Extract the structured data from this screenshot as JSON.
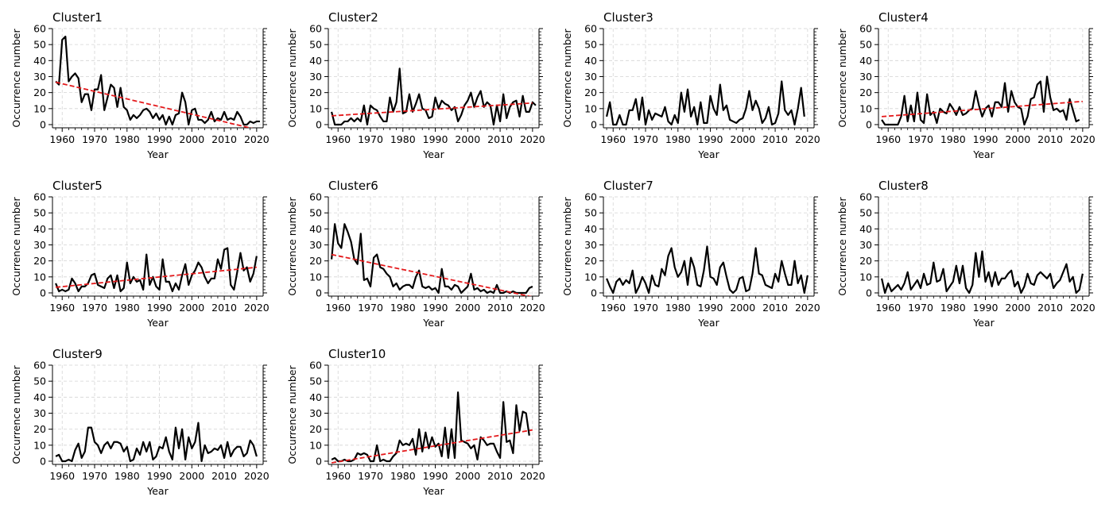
{
  "chart_data": [
    {
      "type": "line",
      "title": "Cluster1",
      "xlabel": "Year",
      "ylabel": "Occurrence number",
      "xlim": [
        1957,
        2022
      ],
      "ylim": [
        -2,
        60
      ],
      "xticks": [
        1960,
        1970,
        1980,
        1990,
        2000,
        2010,
        2020
      ],
      "yticks": [
        0,
        10,
        20,
        30,
        40,
        50,
        60
      ],
      "grid": true,
      "series": [
        {
          "x_start": 1958,
          "values": [
            27,
            25,
            53,
            55,
            27,
            30,
            32,
            29,
            14,
            19,
            19,
            9,
            22,
            22,
            31,
            9,
            17,
            25,
            23,
            11,
            23,
            11,
            9,
            3,
            6,
            4,
            6,
            9,
            10,
            8,
            4,
            7,
            3,
            6,
            0,
            5,
            0,
            6,
            7,
            20,
            14,
            0,
            9,
            10,
            3,
            3,
            1,
            3,
            8,
            2,
            4,
            3,
            8,
            3,
            4,
            3,
            8,
            5,
            0,
            0,
            2,
            1,
            2,
            2
          ],
          "color": "#000000"
        }
      ],
      "trend": {
        "x": [
          1958,
          2020
        ],
        "y": [
          26.5,
          -3.0
        ],
        "color": "#e41a1c",
        "style": "dashed"
      }
    },
    {
      "type": "line",
      "title": "Cluster2",
      "xlabel": "Year",
      "ylabel": "Occurrence number",
      "xlim": [
        1957,
        2022
      ],
      "ylim": [
        -2,
        60
      ],
      "xticks": [
        1960,
        1970,
        1980,
        1990,
        2000,
        2010,
        2020
      ],
      "yticks": [
        0,
        10,
        20,
        30,
        40,
        50,
        60
      ],
      "grid": true,
      "series": [
        {
          "x_start": 1958,
          "values": [
            8,
            0,
            0,
            0,
            2,
            2,
            4,
            2,
            4,
            2,
            12,
            0,
            12,
            10,
            9,
            5,
            2,
            2,
            17,
            8,
            14,
            35,
            7,
            8,
            19,
            8,
            13,
            19,
            10,
            9,
            4,
            5,
            17,
            10,
            15,
            13,
            12,
            9,
            11,
            2,
            6,
            12,
            15,
            20,
            11,
            17,
            21,
            11,
            14,
            12,
            0,
            12,
            2,
            19,
            4,
            11,
            14,
            15,
            5,
            18,
            8,
            8,
            14,
            12
          ],
          "color": "#000000"
        }
      ],
      "trend": {
        "x": [
          1958,
          2020
        ],
        "y": [
          5.5,
          13.5
        ],
        "color": "#e41a1c",
        "style": "dashed"
      }
    },
    {
      "type": "line",
      "title": "Cluster3",
      "xlabel": "Year",
      "ylabel": "Occurrence number",
      "xlim": [
        1957,
        2022
      ],
      "ylim": [
        -2,
        60
      ],
      "xticks": [
        1960,
        1970,
        1980,
        1990,
        2000,
        2010,
        2020
      ],
      "yticks": [
        0,
        10,
        20,
        30,
        40,
        50,
        60
      ],
      "grid": true,
      "series": [
        {
          "x_start": 1958,
          "values": [
            5,
            14,
            0,
            0,
            6,
            0,
            0,
            9,
            9,
            16,
            3,
            17,
            0,
            9,
            3,
            7,
            6,
            5,
            11,
            2,
            0,
            6,
            1,
            20,
            8,
            22,
            5,
            11,
            0,
            14,
            1,
            1,
            18,
            10,
            6,
            25,
            9,
            12,
            3,
            2,
            1,
            3,
            4,
            10,
            21,
            9,
            15,
            10,
            1,
            4,
            11,
            0,
            1,
            7,
            27,
            9,
            6,
            9,
            0,
            10,
            23,
            5
          ],
          "color": "#000000"
        }
      ]
    },
    {
      "type": "line",
      "title": "Cluster4",
      "xlabel": "Year",
      "ylabel": "Occurrence number",
      "xlim": [
        1957,
        2022
      ],
      "ylim": [
        -2,
        60
      ],
      "xticks": [
        1960,
        1970,
        1980,
        1990,
        2000,
        2010,
        2020
      ],
      "yticks": [
        0,
        10,
        20,
        30,
        40,
        50,
        60
      ],
      "grid": true,
      "series": [
        {
          "x_start": 1958,
          "values": [
            3,
            0,
            0,
            0,
            0,
            0,
            5,
            18,
            2,
            12,
            2,
            20,
            3,
            1,
            19,
            6,
            8,
            1,
            10,
            8,
            7,
            13,
            10,
            6,
            11,
            6,
            7,
            9,
            10,
            21,
            12,
            5,
            10,
            12,
            5,
            14,
            14,
            11,
            26,
            8,
            21,
            14,
            11,
            10,
            0,
            5,
            16,
            17,
            25,
            27,
            8,
            30,
            17,
            9,
            10,
            8,
            9,
            3,
            16,
            9,
            2,
            3
          ],
          "color": "#000000"
        }
      ],
      "trend": {
        "x": [
          1958,
          2020
        ],
        "y": [
          5.0,
          14.5
        ],
        "color": "#e41a1c",
        "style": "dashed"
      }
    },
    {
      "type": "line",
      "title": "Cluster5",
      "xlabel": "Year",
      "ylabel": "Occurrence number",
      "xlim": [
        1957,
        2022
      ],
      "ylim": [
        -2,
        60
      ],
      "xticks": [
        1960,
        1970,
        1980,
        1990,
        2000,
        2010,
        2020
      ],
      "yticks": [
        0,
        10,
        20,
        30,
        40,
        50,
        60
      ],
      "grid": true,
      "series": [
        {
          "x_start": 1958,
          "values": [
            6,
            1,
            2,
            1,
            2,
            9,
            6,
            1,
            4,
            4,
            6,
            11,
            12,
            5,
            4,
            3,
            9,
            11,
            3,
            11,
            1,
            3,
            19,
            6,
            10,
            7,
            8,
            2,
            24,
            5,
            10,
            4,
            2,
            21,
            7,
            7,
            1,
            6,
            2,
            11,
            18,
            5,
            11,
            14,
            19,
            16,
            10,
            6,
            9,
            9,
            21,
            15,
            27,
            28,
            5,
            2,
            13,
            25,
            14,
            16,
            7,
            12,
            23
          ],
          "color": "#000000"
        }
      ],
      "trend": {
        "x": [
          1958,
          2020
        ],
        "y": [
          3.5,
          16.0
        ],
        "color": "#e41a1c",
        "style": "dashed"
      }
    },
    {
      "type": "line",
      "title": "Cluster6",
      "xlabel": "Year",
      "ylabel": "Occurrence number",
      "xlim": [
        1957,
        2022
      ],
      "ylim": [
        -2,
        60
      ],
      "xticks": [
        1960,
        1970,
        1980,
        1990,
        2000,
        2010,
        2020
      ],
      "yticks": [
        0,
        10,
        20,
        30,
        40,
        50,
        60
      ],
      "grid": true,
      "series": [
        {
          "x_start": 1958,
          "values": [
            21,
            43,
            31,
            28,
            43,
            38,
            32,
            21,
            18,
            37,
            8,
            9,
            4,
            22,
            24,
            16,
            15,
            12,
            10,
            4,
            6,
            2,
            4,
            5,
            5,
            3,
            10,
            14,
            4,
            3,
            4,
            2,
            3,
            0,
            15,
            4,
            4,
            2,
            5,
            4,
            0,
            2,
            4,
            12,
            2,
            3,
            1,
            2,
            0,
            1,
            0,
            5,
            0,
            0,
            1,
            0,
            1,
            0,
            0,
            0,
            0,
            3,
            4
          ],
          "color": "#000000"
        }
      ],
      "trend": {
        "x": [
          1958,
          2020
        ],
        "y": [
          24.0,
          -2.5
        ],
        "color": "#e41a1c",
        "style": "dashed"
      }
    },
    {
      "type": "line",
      "title": "Cluster7",
      "xlabel": "Year",
      "ylabel": "Occurrence number",
      "xlim": [
        1957,
        2022
      ],
      "ylim": [
        -2,
        60
      ],
      "xticks": [
        1960,
        1970,
        1980,
        1990,
        2000,
        2010,
        2020
      ],
      "yticks": [
        0,
        10,
        20,
        30,
        40,
        50,
        60
      ],
      "grid": true,
      "series": [
        {
          "x_start": 1958,
          "values": [
            9,
            4,
            0,
            7,
            9,
            5,
            8,
            6,
            14,
            0,
            4,
            10,
            6,
            0,
            11,
            5,
            4,
            15,
            11,
            23,
            28,
            16,
            10,
            13,
            20,
            5,
            22,
            16,
            5,
            4,
            14,
            29,
            10,
            9,
            5,
            16,
            19,
            10,
            2,
            0,
            2,
            9,
            10,
            1,
            2,
            12,
            28,
            12,
            11,
            5,
            4,
            3,
            12,
            7,
            20,
            12,
            5,
            5,
            20,
            6,
            11,
            0,
            11
          ],
          "color": "#000000"
        }
      ]
    },
    {
      "type": "line",
      "title": "Cluster8",
      "xlabel": "Year",
      "ylabel": "Occurrence number",
      "xlim": [
        1957,
        2022
      ],
      "ylim": [
        -2,
        60
      ],
      "xticks": [
        1960,
        1970,
        1980,
        1990,
        2000,
        2010,
        2020
      ],
      "yticks": [
        0,
        10,
        20,
        30,
        40,
        50,
        60
      ],
      "grid": true,
      "series": [
        {
          "x_start": 1958,
          "values": [
            9,
            0,
            6,
            1,
            3,
            5,
            2,
            6,
            13,
            2,
            5,
            8,
            3,
            12,
            5,
            6,
            19,
            7,
            8,
            15,
            1,
            4,
            7,
            17,
            6,
            17,
            3,
            0,
            5,
            25,
            10,
            26,
            7,
            13,
            4,
            13,
            5,
            9,
            9,
            12,
            14,
            4,
            7,
            0,
            4,
            12,
            6,
            5,
            11,
            13,
            11,
            9,
            12,
            3,
            6,
            8,
            13,
            18,
            7,
            10,
            0,
            2,
            12
          ],
          "color": "#000000"
        }
      ]
    },
    {
      "type": "line",
      "title": "Cluster9",
      "xlabel": "Year",
      "ylabel": "Occurrence number",
      "xlim": [
        1957,
        2022
      ],
      "ylim": [
        -2,
        60
      ],
      "xticks": [
        1960,
        1970,
        1980,
        1990,
        2000,
        2010,
        2020
      ],
      "yticks": [
        0,
        10,
        20,
        30,
        40,
        50,
        60
      ],
      "grid": true,
      "series": [
        {
          "x_start": 1958,
          "values": [
            3,
            4,
            0,
            0,
            1,
            0,
            7,
            11,
            2,
            6,
            21,
            21,
            12,
            10,
            5,
            10,
            12,
            8,
            12,
            12,
            11,
            6,
            9,
            0,
            1,
            8,
            4,
            12,
            6,
            12,
            1,
            3,
            9,
            8,
            15,
            6,
            1,
            21,
            8,
            20,
            1,
            15,
            8,
            12,
            24,
            0,
            10,
            5,
            6,
            8,
            7,
            10,
            2,
            12,
            3,
            7,
            9,
            9,
            3,
            5,
            13,
            10,
            3
          ],
          "color": "#000000"
        }
      ]
    },
    {
      "type": "line",
      "title": "Cluster10",
      "xlabel": "Year",
      "ylabel": "Occurrence number",
      "xlim": [
        1957,
        2022
      ],
      "ylim": [
        -2,
        60
      ],
      "xticks": [
        1960,
        1970,
        1980,
        1990,
        2000,
        2010,
        2020
      ],
      "yticks": [
        0,
        10,
        20,
        30,
        40,
        50,
        60
      ],
      "grid": true,
      "series": [
        {
          "x_start": 1958,
          "values": [
            1,
            2,
            0,
            0,
            1,
            0,
            0,
            1,
            5,
            4,
            5,
            4,
            0,
            0,
            10,
            0,
            1,
            0,
            0,
            3,
            5,
            13,
            10,
            11,
            10,
            14,
            4,
            20,
            6,
            18,
            8,
            15,
            9,
            11,
            3,
            21,
            2,
            20,
            2,
            43,
            13,
            12,
            11,
            8,
            10,
            1,
            15,
            13,
            10,
            11,
            11,
            6,
            2,
            37,
            12,
            13,
            5,
            35,
            19,
            31,
            30,
            16
          ],
          "color": "#000000"
        }
      ],
      "trend": {
        "x": [
          1958,
          2020
        ],
        "y": [
          -1.0,
          19.5
        ],
        "color": "#e41a1c",
        "style": "dashed"
      }
    }
  ]
}
